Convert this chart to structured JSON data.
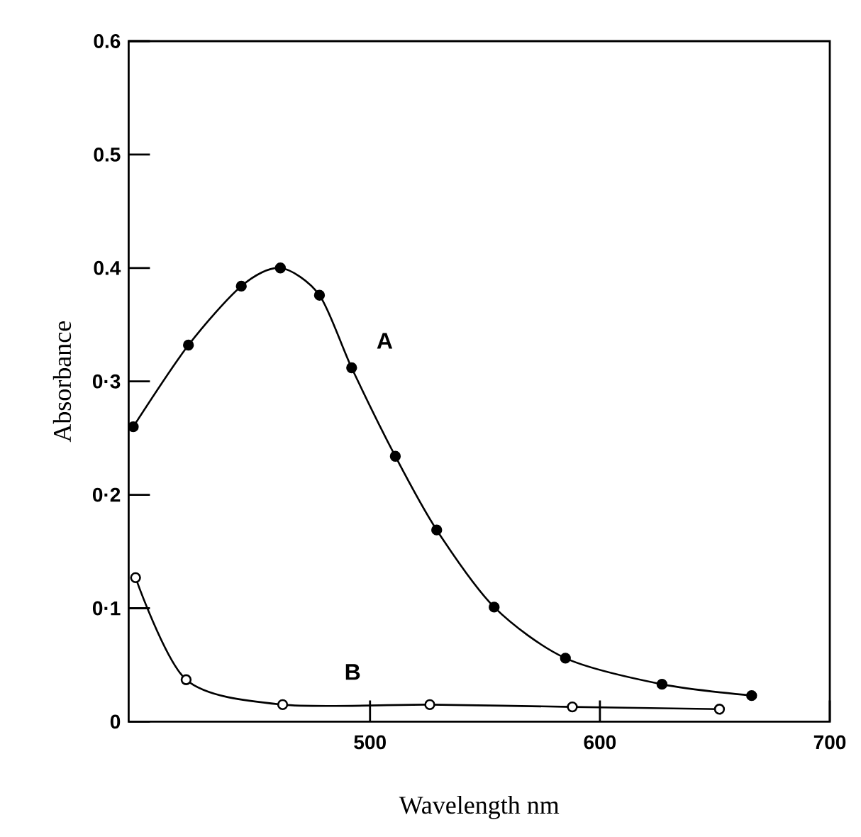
{
  "chart_data": {
    "type": "line",
    "xlabel": "Wavelength nm",
    "ylabel": "Absorbance",
    "xlim": [
      395,
      700
    ],
    "ylim": [
      0,
      0.6
    ],
    "xticks": [
      500,
      600,
      700
    ],
    "yticks": [
      0,
      {
        "value": 0.1,
        "label": "0·1"
      },
      {
        "value": 0.2,
        "label": "0·2"
      },
      {
        "value": 0.3,
        "label": "0·3"
      },
      {
        "value": 0.4,
        "label": "0.4"
      },
      {
        "value": 0.5,
        "label": "0.5"
      },
      {
        "value": 0.6,
        "label": "0.6"
      }
    ],
    "marker": "circle",
    "grid": false,
    "legend": false,
    "series": [
      {
        "name": "A",
        "color": "#000000",
        "x": [
          397,
          421,
          444,
          461,
          478,
          492,
          511,
          529,
          554,
          585,
          627,
          666
        ],
        "values": [
          0.26,
          0.332,
          0.384,
          0.4,
          0.376,
          0.312,
          0.234,
          0.169,
          0.101,
          0.056,
          0.033,
          0.023
        ]
      },
      {
        "name": "B",
        "color": "#000000",
        "x": [
          398,
          420,
          462,
          526,
          588,
          652
        ],
        "values": [
          0.127,
          0.037,
          0.015,
          0.015,
          0.013,
          0.011
        ]
      }
    ]
  }
}
